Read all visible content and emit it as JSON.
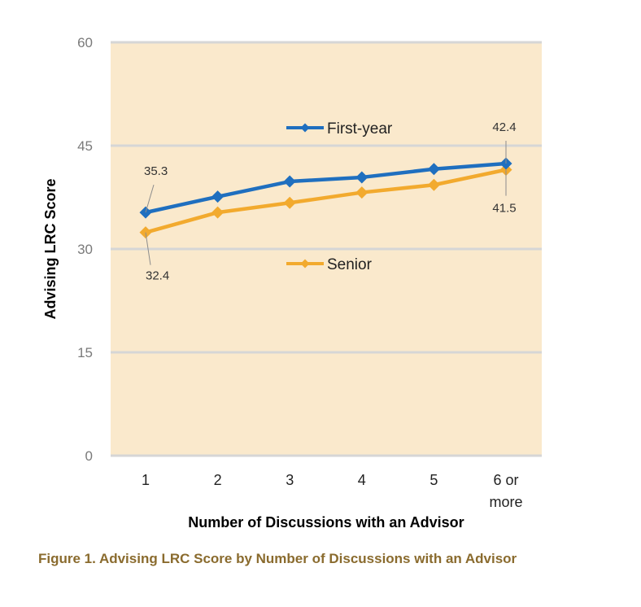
{
  "caption": "Figure 1. Advising LRC Score by Number of Discussions with an Advisor",
  "colors": {
    "plot_background": "#FAE9CC",
    "gridline": "#D6D6D6",
    "first_year": "#1F6FBF",
    "senior": "#F2AA2E",
    "caption": "#8A6B2E"
  },
  "chart_data": {
    "type": "line",
    "title": "",
    "xlabel": "Number of Discussions with an Advisor",
    "ylabel": "Advising LRC Score",
    "categories": [
      "1",
      "2",
      "3",
      "4",
      "5",
      "6 or more"
    ],
    "ylim": [
      0,
      60
    ],
    "yticks": [
      "0",
      "15",
      "30",
      "45",
      "60"
    ],
    "grid": true,
    "legend": "inside, one label next to each series line",
    "series": [
      {
        "name": "First-year",
        "values": [
          35.3,
          37.6,
          39.8,
          40.4,
          41.6,
          42.4
        ]
      },
      {
        "name": "Senior",
        "values": [
          32.4,
          35.3,
          36.7,
          38.2,
          39.3,
          41.5
        ]
      }
    ],
    "annotations": [
      {
        "series": "First-year",
        "category": "1",
        "text": "35.3"
      },
      {
        "series": "Senior",
        "category": "1",
        "text": "32.4"
      },
      {
        "series": "First-year",
        "category": "6 or more",
        "text": "42.4"
      },
      {
        "series": "Senior",
        "category": "6 or more",
        "text": "41.5"
      }
    ]
  }
}
